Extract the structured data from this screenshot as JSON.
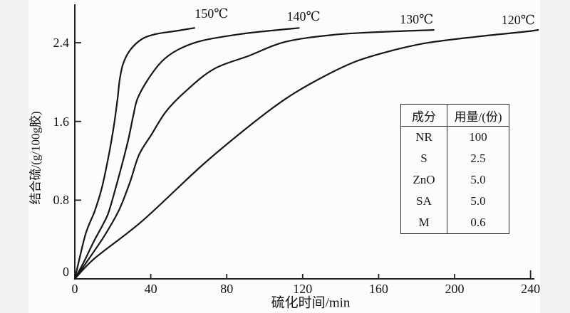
{
  "chart_data": {
    "type": "line",
    "title": "",
    "xlabel": "硫化时间/min",
    "ylabel": "结合硫/(g/100g胶)",
    "xlim": [
      0,
      248
    ],
    "ylim": [
      0,
      2.8
    ],
    "grid": false,
    "legend_position": "labels-above-curves",
    "x_ticks": [
      0,
      40,
      80,
      120,
      160,
      200,
      240
    ],
    "y_ticks": [
      0,
      0.8,
      1.6,
      2.4
    ],
    "series": [
      {
        "name": "150℃",
        "label_anchor": {
          "x": 72,
          "y": 2.7
        },
        "points": [
          [
            0,
            0
          ],
          [
            5.6,
            0.45
          ],
          [
            10.5,
            0.69
          ],
          [
            14.3,
            0.93
          ],
          [
            18,
            1.27
          ],
          [
            20.6,
            1.56
          ],
          [
            22.5,
            1.83
          ],
          [
            23.6,
            2.02
          ],
          [
            25.5,
            2.19
          ],
          [
            29.3,
            2.33
          ],
          [
            35.6,
            2.44
          ],
          [
            43.2,
            2.49
          ],
          [
            53.3,
            2.52
          ],
          [
            63,
            2.55
          ]
        ]
      },
      {
        "name": "140℃",
        "label_anchor": {
          "x": 120.5,
          "y": 2.67
        },
        "points": [
          [
            0,
            0
          ],
          [
            5,
            0.18
          ],
          [
            10,
            0.38
          ],
          [
            15,
            0.56
          ],
          [
            18,
            0.69
          ],
          [
            23.3,
            1.05
          ],
          [
            28.1,
            1.41
          ],
          [
            30.8,
            1.66
          ],
          [
            33,
            1.83
          ],
          [
            38.3,
            2.02
          ],
          [
            45.8,
            2.21
          ],
          [
            54.4,
            2.33
          ],
          [
            66.8,
            2.42
          ],
          [
            88,
            2.49
          ],
          [
            107,
            2.53
          ],
          [
            118,
            2.55
          ]
        ]
      },
      {
        "name": "130℃",
        "label_anchor": {
          "x": 180,
          "y": 2.64
        },
        "points": [
          [
            0,
            0
          ],
          [
            8,
            0.22
          ],
          [
            16,
            0.45
          ],
          [
            23.3,
            0.7
          ],
          [
            29,
            0.98
          ],
          [
            33.8,
            1.26
          ],
          [
            40.5,
            1.47
          ],
          [
            48,
            1.7
          ],
          [
            58,
            1.9
          ],
          [
            73,
            2.13
          ],
          [
            92,
            2.27
          ],
          [
            111,
            2.41
          ],
          [
            136,
            2.48
          ],
          [
            161,
            2.51
          ],
          [
            189,
            2.53
          ]
        ]
      },
      {
        "name": "120℃",
        "label_anchor": {
          "x": 233.5,
          "y": 2.63
        },
        "points": [
          [
            0,
            0
          ],
          [
            10.5,
            0.21
          ],
          [
            35.6,
            0.59
          ],
          [
            66.8,
            1.15
          ],
          [
            91,
            1.54
          ],
          [
            111,
            1.83
          ],
          [
            129.5,
            2.04
          ],
          [
            148,
            2.21
          ],
          [
            167,
            2.32
          ],
          [
            186,
            2.4
          ],
          [
            211,
            2.46
          ],
          [
            236,
            2.51
          ],
          [
            244,
            2.53
          ]
        ]
      }
    ]
  },
  "table": {
    "headers": [
      "成分",
      "用量/(份)"
    ],
    "rows": [
      {
        "component": "NR",
        "amount": "100"
      },
      {
        "component": "S",
        "amount": "2.5"
      },
      {
        "component": "ZnO",
        "amount": "5.0"
      },
      {
        "component": "SA",
        "amount": "5.0"
      },
      {
        "component": "M",
        "amount": "0.6"
      }
    ]
  }
}
